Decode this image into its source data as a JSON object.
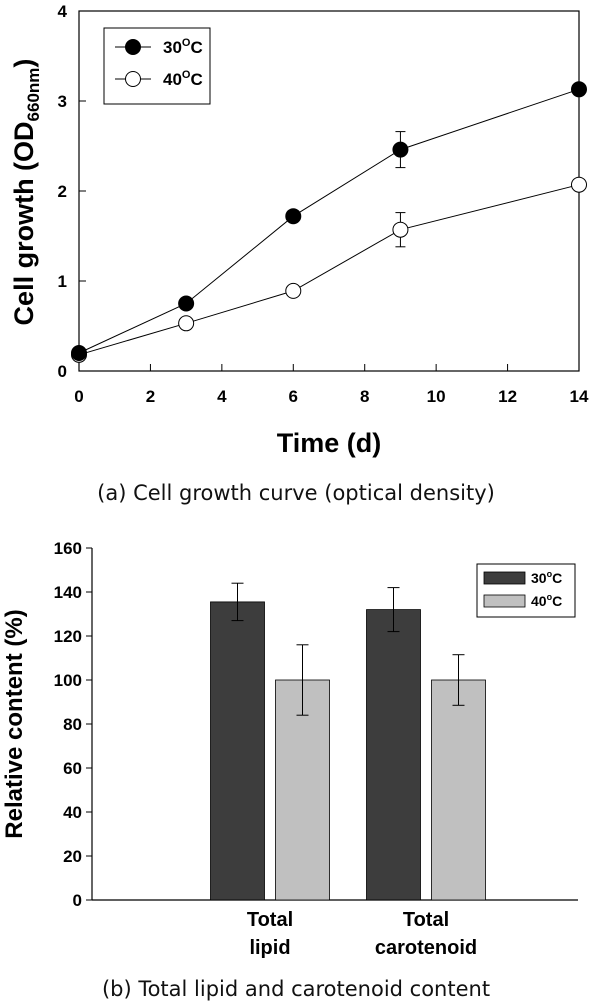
{
  "chart_data": [
    {
      "type": "line",
      "x": [
        0,
        3,
        6,
        9,
        14
      ],
      "series": [
        {
          "name": "30°C",
          "marker": "filled-circle",
          "values": [
            0.2,
            0.75,
            1.72,
            2.46,
            3.13
          ],
          "errors": [
            0,
            0,
            0,
            0.2,
            0
          ]
        },
        {
          "name": "40°C",
          "marker": "open-circle",
          "values": [
            0.18,
            0.53,
            0.89,
            1.57,
            2.07
          ],
          "errors": [
            0,
            0,
            0,
            0.19,
            0
          ]
        }
      ],
      "xlabel": "Time (d)",
      "ylabel_main": "Cell growth (OD",
      "ylabel_sub": "660nm",
      "ylabel_end": ")",
      "xlim": [
        0,
        14
      ],
      "ylim": [
        0,
        4
      ],
      "xticks": [
        "0",
        "2",
        "4",
        "6",
        "8",
        "10",
        "12",
        "14"
      ],
      "yticks": [
        "0",
        "1",
        "2",
        "3",
        "4"
      ],
      "legend_position": "top-left",
      "legend": [
        {
          "base": "30",
          "sup": "O",
          "unit": "C"
        },
        {
          "base": "40",
          "sup": "O",
          "unit": "C"
        }
      ],
      "caption": "(a) Cell growth curve (optical density)"
    },
    {
      "type": "bar",
      "categories": [
        [
          "Total",
          "lipid"
        ],
        [
          "Total",
          "carotenoid"
        ]
      ],
      "series": [
        {
          "name": "30°C",
          "color": "#3d3d3d",
          "values": [
            135.5,
            132
          ],
          "errors": [
            8.5,
            10
          ]
        },
        {
          "name": "40°C",
          "color": "#c0c0c0",
          "values": [
            100,
            100
          ],
          "errors": [
            16,
            11.5
          ]
        }
      ],
      "ylabel": "Relative content (%)",
      "ylim": [
        0,
        160
      ],
      "yticks": [
        "0",
        "20",
        "40",
        "60",
        "80",
        "100",
        "120",
        "140",
        "160"
      ],
      "legend_position": "top-right",
      "legend": [
        {
          "base": "30",
          "sup": "o",
          "unit": "C"
        },
        {
          "base": "40",
          "sup": "o",
          "unit": "C"
        }
      ],
      "caption": "(b) Total lipid and carotenoid content"
    }
  ]
}
